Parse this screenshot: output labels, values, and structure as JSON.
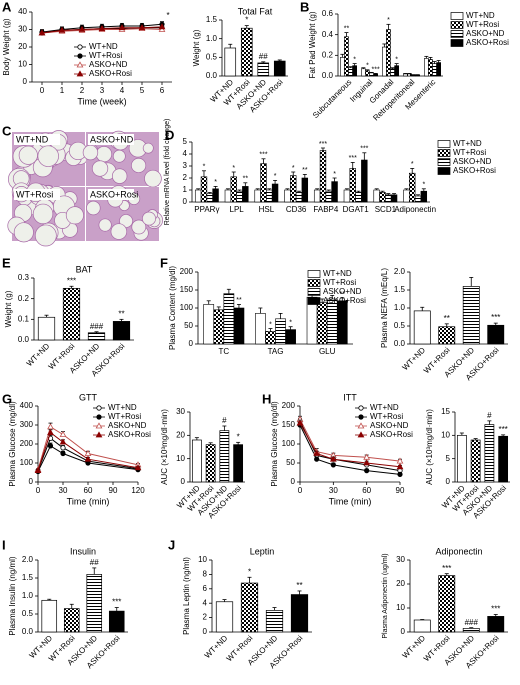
{
  "chart_data": [
    {
      "type": "line",
      "panel": "A",
      "ylabel": "Body Weight (g)",
      "xlabel": "Time (week)",
      "annotation": "*",
      "x": [
        0,
        1,
        2,
        3,
        4,
        5,
        6
      ],
      "xlim": [
        -0.5,
        6.5
      ],
      "xticks": [
        0,
        1,
        2,
        3,
        4,
        5,
        6
      ],
      "ylim": [
        0,
        40
      ],
      "yticks": [
        0,
        10,
        20,
        30,
        40
      ],
      "legend": "lower center",
      "series": [
        {
          "name": "WT+ND",
          "color": "#000000",
          "marker": "circle-open",
          "values": [
            28,
            29.5,
            30,
            30.5,
            30.5,
            31,
            31
          ],
          "errors": [
            1.5,
            1.5,
            1.5,
            1.5,
            1.5,
            1.5,
            1.5
          ]
        },
        {
          "name": "WT+Rosi",
          "color": "#000000",
          "marker": "circle",
          "values": [
            28.5,
            30,
            31,
            31.5,
            32,
            32,
            33
          ],
          "errors": [
            1.5,
            1.5,
            1.5,
            1.5,
            1.5,
            1.5,
            1.5
          ]
        },
        {
          "name": "ASKO+ND",
          "color": "#c0504d",
          "marker": "triangle-open",
          "values": [
            28,
            29,
            29.5,
            30,
            30,
            30.5,
            30
          ],
          "errors": [
            1.5,
            1.5,
            1.5,
            1.5,
            1.5,
            1.5,
            1.5
          ]
        },
        {
          "name": "ASKO+Rosi",
          "color": "#8b0000",
          "marker": "triangle",
          "values": [
            28,
            29.5,
            30,
            30.5,
            31,
            31,
            31.5
          ],
          "errors": [
            1.5,
            1.5,
            1.5,
            1.5,
            1.5,
            1.5,
            1.5
          ]
        }
      ]
    },
    {
      "type": "bar",
      "title": "Total Fat",
      "ylabel": "Weight (g)",
      "categories": [
        "WT+ND",
        "WT+Rosi",
        "ASKO+ND",
        "ASKO+Rosi"
      ],
      "values": [
        0.75,
        1.28,
        0.35,
        0.4
      ],
      "errors": [
        0.1,
        0.07,
        0.03,
        0.03
      ],
      "marks": [
        null,
        "*",
        "##",
        null
      ],
      "fills": [
        "white",
        "crosshatch",
        "hlines",
        "black"
      ],
      "ylim": [
        0,
        1.5
      ],
      "yticks": [
        {
          "value": 0,
          "label": "0.0"
        },
        0.5,
        {
          "value": 1,
          "label": "1.0"
        },
        1.5
      ]
    },
    {
      "type": "grouped_bar",
      "panel": "B",
      "ylabel": "Fat Pad Weight (g)",
      "categories": [
        "Subcutaneous",
        "Inguinal",
        "Gonadal",
        "Retroperitoneal",
        "Mesenteric"
      ],
      "ylim": [
        0,
        0.6
      ],
      "yticks": [
        {
          "value": 0,
          "label": "0.0"
        },
        0.2,
        0.4,
        0.6
      ],
      "legend": "right",
      "series": [
        {
          "name": "WT+ND",
          "fill": "white",
          "values": [
            0.18,
            0.07,
            0.28,
            0.02,
            0.17
          ],
          "errors": [
            0.03,
            0.01,
            0.03,
            0.005,
            0.02
          ]
        },
        {
          "name": "WT+Rosi",
          "fill": "crosshatch",
          "values": [
            0.38,
            0.05,
            0.45,
            0.02,
            0.16
          ],
          "errors": [
            0.04,
            0.01,
            0.05,
            0.005,
            0.02
          ],
          "marks": [
            "**",
            "*",
            "*",
            null,
            null
          ]
        },
        {
          "name": "ASKO+ND",
          "fill": "hlines",
          "values": [
            0.08,
            0.03,
            0.07,
            0.01,
            0.12
          ],
          "errors": [
            0.01,
            0.005,
            0.01,
            0.003,
            0.02
          ]
        },
        {
          "name": "ASKO+Rosi",
          "fill": "black",
          "values": [
            0.1,
            0.02,
            0.1,
            0.01,
            0.13
          ],
          "errors": [
            0.02,
            0.005,
            0.02,
            0.003,
            0.02
          ],
          "marks": [
            "*",
            "***",
            "*",
            null,
            null
          ]
        }
      ]
    },
    {
      "type": "image",
      "panel": "C",
      "labels": [
        "WT+ND",
        "ASKO+ND",
        "WT+Rosi",
        "ASKO+Rosi"
      ]
    },
    {
      "type": "grouped_bar",
      "panel": "D",
      "ylabel": "Relative mRNA level (fold change)",
      "categories": [
        "PPARγ",
        "LPL",
        "HSL",
        "CD36",
        "FABP4",
        "DGAT1",
        "SCD1",
        "Adiponectin"
      ],
      "ylim": [
        0,
        5
      ],
      "yticks": [
        0,
        1,
        2,
        3,
        4,
        5
      ],
      "legend": "right",
      "series": [
        {
          "name": "WT+ND",
          "fill": "white",
          "values": [
            1,
            1,
            1,
            1,
            1,
            1,
            1,
            1
          ],
          "errors": [
            0.1,
            0.1,
            0.1,
            0.1,
            0.1,
            0.1,
            0.1,
            0.1
          ]
        },
        {
          "name": "WT+Rosi",
          "fill": "crosshatch",
          "values": [
            2.1,
            2.1,
            3.2,
            2.2,
            4.3,
            2.8,
            0.8,
            2.4
          ],
          "errors": [
            0.5,
            0.4,
            0.4,
            0.3,
            0.2,
            0.5,
            0.1,
            0.4
          ],
          "marks": [
            "*",
            "*",
            "***",
            "*",
            "***",
            "***",
            null,
            "*"
          ]
        },
        {
          "name": "ASKO+ND",
          "fill": "hlines",
          "values": [
            0.7,
            0.9,
            1.0,
            0.8,
            0.9,
            0.8,
            0.6,
            0.5
          ],
          "errors": [
            0.1,
            0.1,
            0.1,
            0.1,
            0.1,
            0.1,
            0.1,
            0.1
          ]
        },
        {
          "name": "ASKO+Rosi",
          "fill": "black",
          "values": [
            1.1,
            1.3,
            1.5,
            2.0,
            1.7,
            3.5,
            0.6,
            0.9
          ],
          "errors": [
            0.2,
            0.3,
            0.3,
            0.3,
            0.3,
            0.6,
            0.1,
            0.2
          ],
          "marks": [
            "*",
            "**",
            "*",
            "**",
            "*",
            "***",
            null,
            "*"
          ]
        }
      ]
    },
    {
      "type": "bar",
      "panel": "E",
      "title": "BAT",
      "ylabel": "Weight (g)",
      "categories": [
        "WT+ND",
        "WT+Rosi",
        "ASKO+ND",
        "ASKO+Rosi"
      ],
      "values": [
        0.11,
        0.25,
        0.035,
        0.09
      ],
      "errors": [
        0.01,
        0.01,
        0.005,
        0.01
      ],
      "marks": [
        null,
        "***",
        "###",
        "**"
      ],
      "fills": [
        "white",
        "crosshatch",
        "hlines",
        "black"
      ],
      "ylim": [
        0,
        0.3
      ],
      "yticks": [
        {
          "value": 0,
          "label": "0.0"
        },
        0.1,
        0.2,
        0.3
      ]
    },
    {
      "type": "grouped_bar",
      "panel": "F",
      "ylabel": "Plasma Content (mg/dl)",
      "categories": [
        "TC",
        "TAG",
        "GLU"
      ],
      "ylim": [
        0,
        200
      ],
      "yticks": [
        0,
        50,
        100,
        150,
        200
      ],
      "legend": "upper right",
      "series": [
        {
          "name": "WT+ND",
          "fill": "white",
          "values": [
            110,
            85,
            130
          ],
          "errors": [
            10,
            15,
            8
          ]
        },
        {
          "name": "WT+Rosi",
          "fill": "crosshatch",
          "values": [
            95,
            35,
            115
          ],
          "errors": [
            8,
            8,
            10
          ],
          "marks": [
            null,
            "*",
            null
          ]
        },
        {
          "name": "ASKO+ND",
          "fill": "hlines",
          "values": [
            140,
            70,
            125
          ],
          "errors": [
            12,
            15,
            10
          ]
        },
        {
          "name": "ASKO+Rosi",
          "fill": "black",
          "values": [
            100,
            40,
            120
          ],
          "errors": [
            10,
            8,
            8
          ],
          "marks": [
            "**",
            "*",
            "**"
          ]
        }
      ]
    },
    {
      "type": "bar",
      "ylabel": "Plasma NEFA (mEq/L)",
      "categories": [
        "WT+ND",
        "WT+Rosi",
        "ASKO+ND",
        "ASKO+Rosi"
      ],
      "values": [
        0.92,
        0.48,
        1.6,
        0.52
      ],
      "errors": [
        0.1,
        0.08,
        0.25,
        0.06
      ],
      "marks": [
        null,
        "**",
        null,
        "***"
      ],
      "fills": [
        "white",
        "crosshatch",
        "hlines",
        "black"
      ],
      "ylim": [
        0,
        2
      ],
      "yticks": [
        {
          "value": 0,
          "label": "0.0"
        },
        0.5,
        {
          "value": 1,
          "label": "1.0"
        },
        1.5,
        {
          "value": 2,
          "label": "2.0"
        }
      ]
    },
    {
      "type": "line",
      "panel": "G",
      "title": "GTT",
      "ylabel": "Plasma Glucose (mg/dl)",
      "xlabel": "Time (min)",
      "x": [
        0,
        15,
        30,
        60,
        120
      ],
      "xlim": [
        0,
        120
      ],
      "xticks": [
        0,
        30,
        60,
        90,
        120
      ],
      "ylim": [
        0,
        400
      ],
      "yticks": [
        0,
        100,
        200,
        300,
        400
      ],
      "legend": "upper right",
      "series": [
        {
          "name": "WT+ND",
          "color": "#000000",
          "marker": "circle-open",
          "values": [
            60,
            230,
            180,
            110,
            70
          ],
          "errors": [
            5,
            15,
            12,
            10,
            6
          ]
        },
        {
          "name": "WT+Rosi",
          "color": "#000000",
          "marker": "circle",
          "values": [
            55,
            190,
            150,
            100,
            65
          ],
          "errors": [
            5,
            15,
            12,
            8,
            6
          ]
        },
        {
          "name": "ASKO+ND",
          "color": "#c0504d",
          "marker": "triangle-open",
          "values": [
            65,
            290,
            250,
            150,
            90
          ],
          "errors": [
            5,
            20,
            15,
            12,
            8
          ]
        },
        {
          "name": "ASKO+Rosi",
          "color": "#8b0000",
          "marker": "triangle",
          "values": [
            60,
            260,
            210,
            120,
            75
          ],
          "errors": [
            5,
            15,
            12,
            10,
            6
          ]
        }
      ]
    },
    {
      "type": "bar",
      "ylabel": "AUC (×10³mg/dl·min)",
      "categories": [
        "WT+ND",
        "WT+Rosi",
        "ASKO+ND",
        "ASKO+Rosi"
      ],
      "values": [
        18,
        16,
        22,
        16
      ],
      "errors": [
        1,
        0.8,
        2,
        1
      ],
      "marks": [
        null,
        null,
        "#",
        "*"
      ],
      "fills": [
        "white",
        "crosshatch",
        "hlines",
        "black"
      ],
      "ylim": [
        0,
        30
      ],
      "yticks": [
        0,
        10,
        20,
        30
      ]
    },
    {
      "type": "line",
      "panel": "H",
      "title": "ITT",
      "ylabel": "Plasma Glucose (mg/dl)",
      "xlabel": "Time (min)",
      "x": [
        0,
        15,
        30,
        60,
        90
      ],
      "xlim": [
        0,
        90
      ],
      "xticks": [
        0,
        30,
        60,
        90
      ],
      "ylim": [
        0,
        200
      ],
      "yticks": [
        0,
        50,
        100,
        150,
        200
      ],
      "legend": "upper right",
      "series": [
        {
          "name": "WT+ND",
          "color": "#000000",
          "marker": "circle-open",
          "values": [
            160,
            70,
            60,
            45,
            30
          ],
          "errors": [
            8,
            8,
            6,
            5,
            4
          ]
        },
        {
          "name": "WT+Rosi",
          "color": "#000000",
          "marker": "circle",
          "values": [
            150,
            60,
            45,
            30,
            20
          ],
          "errors": [
            8,
            6,
            5,
            4,
            3
          ]
        },
        {
          "name": "ASKO+ND",
          "color": "#c0504d",
          "marker": "triangle-open",
          "values": [
            165,
            80,
            70,
            65,
            55
          ],
          "errors": [
            8,
            8,
            6,
            6,
            5
          ]
        },
        {
          "name": "ASKO+Rosi",
          "color": "#8b0000",
          "marker": "triangle",
          "values": [
            155,
            75,
            60,
            50,
            40
          ],
          "errors": [
            8,
            6,
            6,
            5,
            4
          ]
        }
      ]
    },
    {
      "type": "bar",
      "ylabel": "AUC (×10³mg/dl·min)",
      "categories": [
        "WT+ND",
        "WT+Rosi",
        "ASKO+ND",
        "ASKO+Rosi"
      ],
      "values": [
        10,
        9,
        12.3,
        9.8
      ],
      "errors": [
        0.5,
        0.3,
        0.8,
        0.3
      ],
      "marks": [
        null,
        null,
        "#",
        "***"
      ],
      "fills": [
        "white",
        "crosshatch",
        "hlines",
        "black"
      ],
      "ylim": [
        0,
        15
      ],
      "yticks": [
        0,
        5,
        10,
        15
      ]
    },
    {
      "type": "bar",
      "panel": "I",
      "title": "Insulin",
      "ylabel": "Plasma Insulin (ng/ml)",
      "categories": [
        "WT+ND",
        "WT+Rosi",
        "ASKO+ND",
        "ASKO+Rosi"
      ],
      "values": [
        0.88,
        0.65,
        1.6,
        0.58
      ],
      "errors": [
        0.03,
        0.12,
        0.18,
        0.1
      ],
      "marks": [
        null,
        null,
        "##",
        "***"
      ],
      "fills": [
        "white",
        "crosshatch",
        "hlines",
        "black"
      ],
      "ylim": [
        0,
        2
      ],
      "yticks": [
        {
          "value": 0,
          "label": "0.0"
        },
        0.5,
        {
          "value": 1,
          "label": "1.0"
        },
        1.5,
        {
          "value": 2,
          "label": "2.0"
        }
      ]
    },
    {
      "type": "bar",
      "panel": "J",
      "title": "Leptin",
      "ylabel": "Plasma Leptin (ng/ml)",
      "categories": [
        "WT+ND",
        "WT+Rosi",
        "ASKO+ND",
        "ASKO+Rosi"
      ],
      "values": [
        4.2,
        6.8,
        3.0,
        5.2
      ],
      "errors": [
        0.3,
        0.8,
        0.4,
        0.5
      ],
      "marks": [
        null,
        "*",
        null,
        "**"
      ],
      "fills": [
        "white",
        "crosshatch",
        "hlines",
        "black"
      ],
      "ylim": [
        0,
        10
      ],
      "yticks": [
        0,
        2,
        4,
        6,
        8,
        10
      ]
    },
    {
      "type": "bar",
      "title": "Adiponectin",
      "ylabel": "Plasma Adiponectin (ug/ml)",
      "categories": [
        "WT+ND",
        "WT+Rosi",
        "ASKO+ND",
        "ASKO+Rosi"
      ],
      "values": [
        5,
        23.5,
        1.5,
        6.5
      ],
      "errors": [
        0.2,
        0.8,
        0.3,
        0.8
      ],
      "marks": [
        null,
        "***",
        "###",
        "***"
      ],
      "fills": [
        "white",
        "crosshatch",
        "hlines",
        "black"
      ],
      "ylim": [
        0,
        30
      ],
      "yticks": [
        0,
        10,
        20,
        30
      ]
    }
  ]
}
